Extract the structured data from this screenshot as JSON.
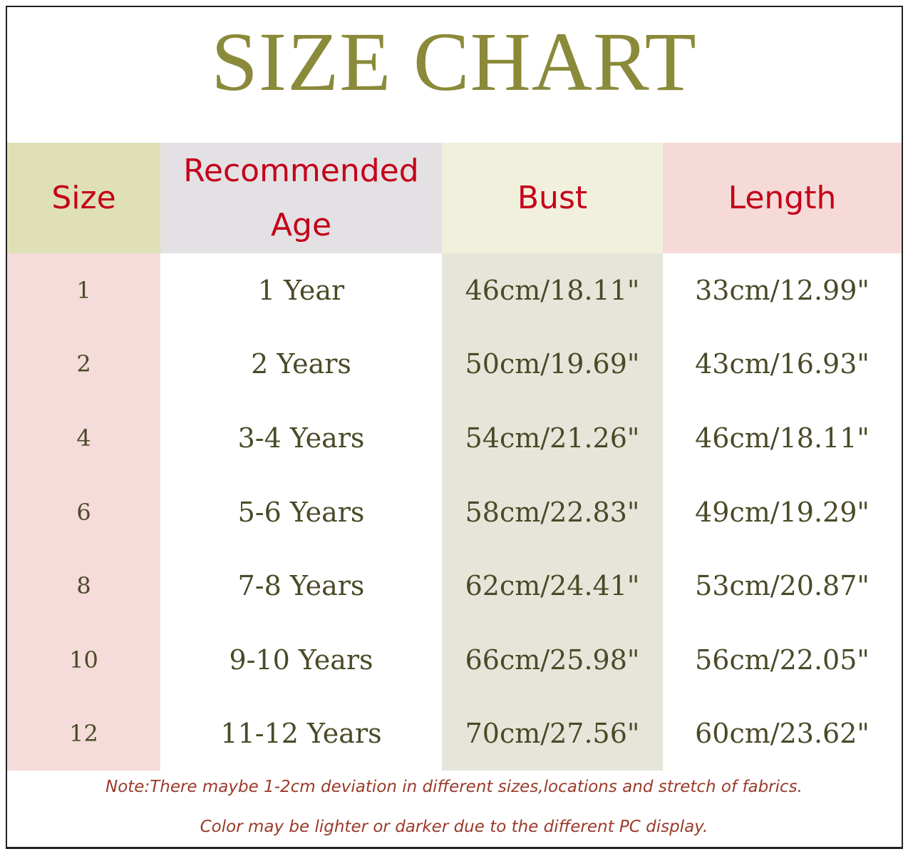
{
  "chart_data": {
    "type": "table",
    "title": "SIZE CHART",
    "columns": [
      "Size",
      "Recommended Age",
      "Bust",
      "Length"
    ],
    "rows": [
      [
        "1",
        "1 Year",
        "46cm/18.11\"",
        "33cm/12.99\""
      ],
      [
        "2",
        "2 Years",
        "50cm/19.69\"",
        "43cm/16.93\""
      ],
      [
        "4",
        "3-4 Years",
        "54cm/21.26\"",
        "46cm/18.11\""
      ],
      [
        "6",
        "5-6 Years",
        "58cm/22.83\"",
        "49cm/19.29\""
      ],
      [
        "8",
        "7-8 Years",
        "62cm/24.41\"",
        "53cm/20.87\""
      ],
      [
        "10",
        "9-10 Years",
        "66cm/25.98\"",
        "56cm/22.05\""
      ],
      [
        "12",
        "11-12 Years",
        "70cm/27.56\"",
        "60cm/23.62\""
      ]
    ]
  },
  "notes": [
    "Note:There maybe 1-2cm deviation in different sizes,locations and stretch of fabrics.",
    "Color may be lighter or darker due to the different PC display."
  ],
  "colors": {
    "title": "#8a8a3a",
    "header_text": "#c4001a",
    "cell_text": "#4a4a28",
    "note_text": "#9b3a2a"
  }
}
